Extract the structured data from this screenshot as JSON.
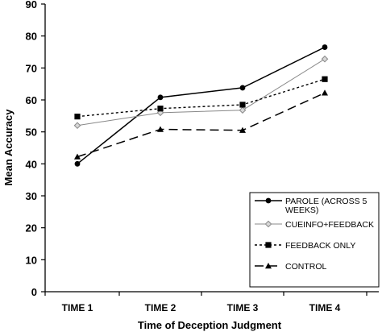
{
  "chart_data": {
    "type": "line",
    "title": "",
    "xlabel": "Time of Deception Judgment",
    "ylabel": "Mean Accuracy",
    "categories": [
      "TIME 1",
      "TIME 2",
      "TIME 3",
      "TIME 4"
    ],
    "ylim": [
      0,
      90
    ],
    "yticks": [
      0,
      10,
      20,
      30,
      40,
      50,
      60,
      70,
      80,
      90
    ],
    "grid": false,
    "legend_position": "bottom-right",
    "series": [
      {
        "name_lines": [
          "PAROLE (ACROSS 5",
          "WEEKS)"
        ],
        "values": [
          40.0,
          60.8,
          63.8,
          76.5
        ],
        "line_style": "solid",
        "marker": "circle",
        "color": "#000000"
      },
      {
        "name_lines": [
          "CUEINFO+FEEDBACK"
        ],
        "values": [
          52.0,
          56.0,
          56.8,
          72.8
        ],
        "line_style": "solid-thin",
        "marker": "diamond",
        "color": "#888888"
      },
      {
        "name_lines": [
          "FEEDBACK ONLY"
        ],
        "values": [
          54.8,
          57.3,
          58.5,
          66.5
        ],
        "line_style": "dotted",
        "marker": "square",
        "color": "#000000"
      },
      {
        "name_lines": [
          "CONTROL"
        ],
        "values": [
          42.2,
          50.8,
          50.5,
          62.2
        ],
        "line_style": "dashed",
        "marker": "triangle",
        "color": "#000000"
      }
    ]
  }
}
